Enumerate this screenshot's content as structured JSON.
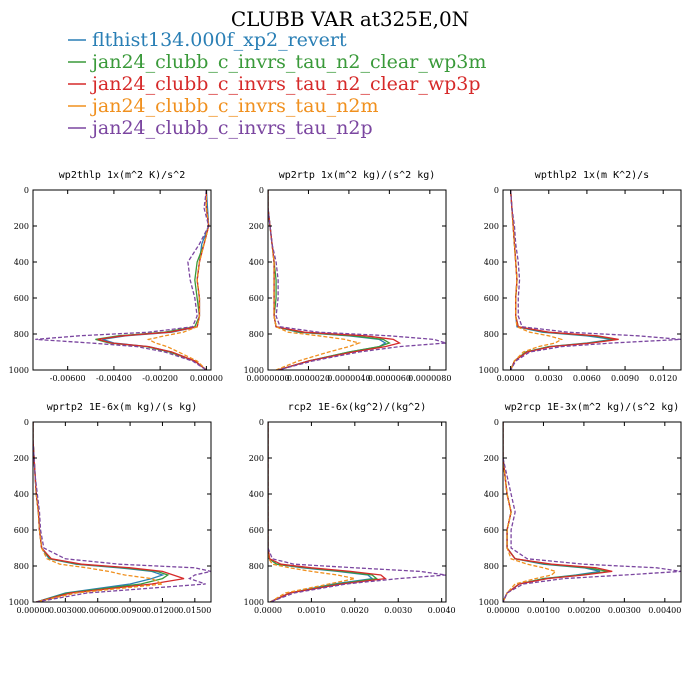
{
  "figure": {
    "title": "CLUBB VAR at325E,0N"
  },
  "legend": [
    {
      "label": "flthist134.000f_xp2_revert",
      "color": "#2a7fb5"
    },
    {
      "label": "jan24_clubb_c_invrs_tau_n2_clear_wp3m",
      "color": "#3a9a3a"
    },
    {
      "label": "jan24_clubb_c_invrs_tau_n2_clear_wp3p",
      "color": "#d62a2a"
    },
    {
      "label": "jan24_clubb_c_invrs_tau_n2m",
      "color": "#f0901e"
    },
    {
      "label": "jan24_clubb_c_invrs_tau_n2p",
      "color": "#7b46a0"
    }
  ],
  "chart_data": [
    {
      "type": "line",
      "title": "wp2thlp  1x(m^2 K)/s^2",
      "xlim": [
        -0.0075,
        0.0002
      ],
      "ylim": [
        1000,
        0
      ],
      "yticks": [
        0,
        200,
        400,
        600,
        800,
        1000
      ],
      "xticks": [
        {
          "v": -0.006,
          "label": "-0.00600"
        },
        {
          "v": -0.004,
          "label": "-0.00400"
        },
        {
          "v": -0.002,
          "label": "-0.00200"
        },
        {
          "v": 0.0,
          "label": "0.00000"
        }
      ],
      "y": [
        0,
        100,
        200,
        300,
        400,
        500,
        600,
        700,
        760,
        790,
        810,
        830,
        850,
        870,
        900,
        950,
        1000
      ],
      "series": [
        {
          "values": [
            0,
            5e-05,
            0.0001,
            -0.0002,
            -0.0003,
            -0.0004,
            -0.0003,
            -0.0003,
            -0.0004,
            -0.0015,
            -0.0035,
            -0.0045,
            -0.004,
            -0.0025,
            -0.0015,
            -0.0005,
            0
          ],
          "color": "#2a7fb5"
        },
        {
          "values": [
            0,
            0.0,
            0.0001,
            -0.0001,
            -0.0004,
            -0.0005,
            -0.0004,
            -0.0003,
            -0.0005,
            -0.0018,
            -0.0038,
            -0.0048,
            -0.0042,
            -0.0026,
            -0.0016,
            -0.0005,
            0
          ],
          "color": "#3a9a3a"
        },
        {
          "values": [
            0,
            0.0,
            0.0001,
            -0.0001,
            -0.0003,
            -0.0004,
            -0.0003,
            -0.0003,
            -0.0004,
            -0.0016,
            -0.0036,
            -0.0047,
            -0.0041,
            -0.0025,
            -0.0015,
            -0.0005,
            0
          ],
          "color": "#d62a2a"
        },
        {
          "values": [
            0,
            0.0,
            0.0001,
            -0.0001,
            -0.0003,
            -0.0004,
            -0.0003,
            -0.0003,
            -0.0004,
            -0.001,
            -0.0018,
            -0.0025,
            -0.0022,
            -0.0017,
            -0.0012,
            -0.0004,
            0
          ],
          "color": "#f0901e",
          "dashed": true
        },
        {
          "values": [
            0,
            -0.0001,
            0.0001,
            -0.0003,
            -0.0008,
            -0.0007,
            -0.0005,
            -0.0004,
            -0.0006,
            -0.0025,
            -0.0055,
            -0.0074,
            -0.005,
            -0.003,
            -0.0018,
            -0.0006,
            0
          ],
          "color": "#7b46a0",
          "dashed": true
        }
      ]
    },
    {
      "type": "line",
      "title": "wp2rtp  1x(m^2 kg)/(s^2 kg)",
      "xlim": [
        0,
        8.8e-06
      ],
      "ylim": [
        1000,
        0
      ],
      "yticks": [
        0,
        200,
        400,
        600,
        800,
        1000
      ],
      "xticks": [
        {
          "v": 0,
          "label": "0.0000000"
        },
        {
          "v": 2e-06,
          "label": "0.0000020"
        },
        {
          "v": 4e-06,
          "label": "0.0000040"
        },
        {
          "v": 6e-06,
          "label": "0.0000060"
        },
        {
          "v": 8e-06,
          "label": "0.0000080"
        }
      ],
      "y": [
        0,
        100,
        200,
        300,
        400,
        500,
        600,
        700,
        760,
        790,
        810,
        830,
        850,
        870,
        900,
        950,
        1000
      ],
      "series": [
        {
          "values": [
            0,
            0,
            1e-07,
            2e-07,
            3e-07,
            3e-07,
            3e-07,
            3e-07,
            4e-07,
            1.5e-06,
            4e-06,
            5.5e-06,
            5.8e-06,
            5.5e-06,
            4e-06,
            2e-06,
            5e-07
          ],
          "color": "#2a7fb5"
        },
        {
          "values": [
            0,
            0,
            1e-07,
            2e-07,
            3e-07,
            4e-07,
            4e-07,
            3e-07,
            4e-07,
            1.6e-06,
            4.2e-06,
            5.7e-06,
            6e-06,
            5.5e-06,
            4e-06,
            2e-06,
            5e-07
          ],
          "color": "#3a9a3a"
        },
        {
          "values": [
            0,
            0,
            1e-07,
            2e-07,
            3e-07,
            3e-07,
            3e-07,
            3e-07,
            4e-07,
            1.8e-06,
            4.8e-06,
            6.2e-06,
            6.5e-06,
            5.8e-06,
            4.2e-06,
            2e-06,
            5e-07
          ],
          "color": "#d62a2a"
        },
        {
          "values": [
            0,
            0,
            1e-07,
            2e-07,
            3e-07,
            3e-07,
            3e-07,
            3e-07,
            4e-07,
            1e-06,
            2.5e-06,
            3.8e-06,
            4.5e-06,
            4e-06,
            3e-06,
            1.5e-06,
            4e-07
          ],
          "color": "#f0901e",
          "dashed": true
        },
        {
          "values": [
            0,
            0,
            1e-07,
            2e-07,
            4e-07,
            5e-07,
            5e-07,
            4e-07,
            6e-07,
            2.5e-06,
            6e-06,
            8.2e-06,
            8.8e-06,
            6.5e-06,
            4.5e-06,
            2.2e-06,
            5e-07
          ],
          "color": "#7b46a0",
          "dashed": true
        }
      ]
    },
    {
      "type": "line",
      "title": "wpthlp2  1x(m K^2)/s",
      "xlim": [
        -0.0006,
        0.0134
      ],
      "ylim": [
        1000,
        0
      ],
      "yticks": [
        0,
        200,
        400,
        600,
        800,
        1000
      ],
      "xticks": [
        {
          "v": 0,
          "label": "0.0000"
        },
        {
          "v": 0.003,
          "label": "0.0030"
        },
        {
          "v": 0.006,
          "label": "0.0060"
        },
        {
          "v": 0.009,
          "label": "0.0090"
        },
        {
          "v": 0.012,
          "label": "0.0120"
        }
      ],
      "y": [
        0,
        100,
        200,
        300,
        400,
        500,
        600,
        700,
        760,
        790,
        810,
        830,
        850,
        870,
        900,
        950,
        1000
      ],
      "series": [
        {
          "values": [
            0,
            0.0001,
            0.0002,
            0.0003,
            0.0004,
            0.0005,
            0.0004,
            0.0004,
            0.0005,
            0.0025,
            0.006,
            0.008,
            0.006,
            0.003,
            0.0012,
            0.0003,
            0
          ],
          "color": "#2a7fb5"
        },
        {
          "values": [
            0,
            0.0001,
            0.0002,
            0.0003,
            0.0004,
            0.0005,
            0.0004,
            0.0004,
            0.0006,
            0.0028,
            0.0065,
            0.0083,
            0.0062,
            0.003,
            0.0012,
            0.0003,
            0
          ],
          "color": "#3a9a3a"
        },
        {
          "values": [
            0,
            0.0001,
            0.0002,
            0.0003,
            0.0004,
            0.0005,
            0.0004,
            0.0004,
            0.0006,
            0.003,
            0.0068,
            0.0085,
            0.0064,
            0.0032,
            0.0013,
            0.0003,
            0
          ],
          "color": "#d62a2a"
        },
        {
          "values": [
            0,
            0.0001,
            0.0002,
            0.0003,
            0.0004,
            0.0005,
            0.0004,
            0.0004,
            0.0005,
            0.0015,
            0.003,
            0.004,
            0.0035,
            0.0022,
            0.001,
            0.0003,
            0
          ],
          "color": "#f0901e",
          "dashed": true
        },
        {
          "values": [
            0,
            0.0001,
            0.0003,
            0.0004,
            0.0006,
            0.0007,
            0.0006,
            0.0006,
            0.0009,
            0.0045,
            0.01,
            0.0134,
            0.008,
            0.004,
            0.0015,
            0.0004,
            0
          ],
          "color": "#7b46a0",
          "dashed": true
        }
      ]
    },
    {
      "type": "line",
      "title": "wprtp2  1E-6x(m kg)/(s kg)",
      "xlim": [
        0,
        0.0165
      ],
      "ylim": [
        1000,
        0
      ],
      "yticks": [
        0,
        200,
        400,
        600,
        800,
        1000
      ],
      "xticks": [
        {
          "v": 0,
          "label": "0.00000"
        },
        {
          "v": 0.003,
          "label": "0.00300"
        },
        {
          "v": 0.006,
          "label": "0.00600"
        },
        {
          "v": 0.009,
          "label": "0.00900"
        },
        {
          "v": 0.012,
          "label": "0.01200"
        },
        {
          "v": 0.015,
          "label": "0.01500"
        }
      ],
      "y": [
        0,
        100,
        200,
        300,
        400,
        500,
        600,
        700,
        760,
        790,
        810,
        830,
        850,
        870,
        900,
        950,
        1000
      ],
      "series": [
        {
          "values": [
            0,
            0,
            0.0001,
            0.0002,
            0.0003,
            0.0005,
            0.0006,
            0.0008,
            0.0015,
            0.004,
            0.008,
            0.011,
            0.012,
            0.011,
            0.009,
            0.003,
            0.0003
          ],
          "color": "#2a7fb5"
        },
        {
          "values": [
            0,
            0,
            0.0001,
            0.0002,
            0.0003,
            0.0005,
            0.0006,
            0.0008,
            0.0016,
            0.0042,
            0.0085,
            0.0115,
            0.0125,
            0.012,
            0.01,
            0.0032,
            0.0003
          ],
          "color": "#3a9a3a"
        },
        {
          "values": [
            0,
            0,
            0.0001,
            0.0002,
            0.0003,
            0.0005,
            0.0006,
            0.0008,
            0.0017,
            0.0045,
            0.009,
            0.012,
            0.013,
            0.014,
            0.011,
            0.0035,
            0.0003
          ],
          "color": "#d62a2a"
        },
        {
          "values": [
            0,
            0,
            0.0001,
            0.0002,
            0.0003,
            0.0005,
            0.0006,
            0.0008,
            0.0013,
            0.0025,
            0.005,
            0.007,
            0.0085,
            0.011,
            0.012,
            0.004,
            0.0003
          ],
          "color": "#f0901e",
          "dashed": true
        },
        {
          "values": [
            0,
            0,
            0.0001,
            0.0002,
            0.0004,
            0.0006,
            0.0007,
            0.001,
            0.003,
            0.008,
            0.015,
            0.0165,
            0.015,
            0.0145,
            0.016,
            0.005,
            0.0003
          ],
          "color": "#7b46a0",
          "dashed": true
        }
      ]
    },
    {
      "type": "line",
      "title": "rcp2  1E-6x(kg^2)/(kg^2)",
      "xlim": [
        0,
        0.0041
      ],
      "ylim": [
        1000,
        0
      ],
      "yticks": [
        0,
        200,
        400,
        600,
        800,
        1000
      ],
      "xticks": [
        {
          "v": 0,
          "label": "0.0000"
        },
        {
          "v": 0.001,
          "label": "0.0010"
        },
        {
          "v": 0.002,
          "label": "0.0020"
        },
        {
          "v": 0.003,
          "label": "0.0030"
        },
        {
          "v": 0.004,
          "label": "0.0040"
        }
      ],
      "y": [
        0,
        100,
        200,
        300,
        400,
        500,
        600,
        700,
        760,
        790,
        810,
        830,
        850,
        870,
        900,
        950,
        1000
      ],
      "series": [
        {
          "values": [
            0,
            0,
            0,
            0,
            0,
            0,
            0,
            0,
            3e-05,
            0.0002,
            0.0008,
            0.0016,
            0.0023,
            0.0024,
            0.0015,
            0.0005,
            5e-05
          ],
          "color": "#2a7fb5"
        },
        {
          "values": [
            0,
            0,
            0,
            0,
            0,
            0,
            0,
            0,
            3e-05,
            0.0002,
            0.0009,
            0.0017,
            0.0024,
            0.0025,
            0.0016,
            0.0005,
            5e-05
          ],
          "color": "#3a9a3a"
        },
        {
          "values": [
            0,
            0,
            0,
            0,
            0,
            0,
            0,
            0,
            4e-05,
            0.0003,
            0.001,
            0.0019,
            0.0026,
            0.0027,
            0.0017,
            0.0005,
            5e-05
          ],
          "color": "#d62a2a"
        },
        {
          "values": [
            0,
            0,
            0,
            0,
            0,
            0,
            0,
            0,
            2e-05,
            0.0001,
            0.0005,
            0.001,
            0.0016,
            0.002,
            0.0014,
            0.0004,
            5e-05
          ],
          "color": "#f0901e",
          "dashed": true
        },
        {
          "values": [
            0,
            0,
            0,
            0,
            0,
            0,
            0,
            0,
            0.0001,
            0.0006,
            0.002,
            0.0035,
            0.0041,
            0.003,
            0.0018,
            0.0006,
            5e-05
          ],
          "color": "#7b46a0",
          "dashed": true
        }
      ]
    },
    {
      "type": "line",
      "title": "wp2rcp  1E-3x(m^2 kg)/(s^2 kg)",
      "xlim": [
        0,
        0.0044
      ],
      "ylim": [
        1000,
        0
      ],
      "yticks": [
        0,
        200,
        400,
        600,
        800,
        1000
      ],
      "xticks": [
        {
          "v": 0,
          "label": "0.00000"
        },
        {
          "v": 0.001,
          "label": "0.00100"
        },
        {
          "v": 0.002,
          "label": "0.00200"
        },
        {
          "v": 0.003,
          "label": "0.00300"
        },
        {
          "v": 0.004,
          "label": "0.00400"
        }
      ],
      "y": [
        0,
        100,
        200,
        300,
        400,
        500,
        600,
        700,
        760,
        790,
        810,
        830,
        850,
        870,
        900,
        950,
        1000
      ],
      "series": [
        {
          "values": [
            0,
            0,
            0,
            5e-05,
            0.0001,
            0.0002,
            0.0001,
            0.0001,
            0.0003,
            0.001,
            0.002,
            0.0024,
            0.0018,
            0.001,
            0.0004,
            0.0001,
            0
          ],
          "color": "#2a7fb5"
        },
        {
          "values": [
            0,
            0,
            0,
            5e-05,
            0.0001,
            0.0002,
            0.0001,
            0.0001,
            0.0003,
            0.0011,
            0.0021,
            0.0026,
            0.0019,
            0.001,
            0.0004,
            0.0001,
            0
          ],
          "color": "#3a9a3a"
        },
        {
          "values": [
            0,
            0,
            0,
            5e-05,
            0.0001,
            0.0002,
            0.0001,
            0.0001,
            0.0003,
            0.0012,
            0.0023,
            0.0027,
            0.002,
            0.0011,
            0.0004,
            0.0001,
            0
          ],
          "color": "#d62a2a"
        },
        {
          "values": [
            0,
            0,
            0,
            5e-05,
            0.0001,
            0.0002,
            0.0001,
            0.0001,
            0.0002,
            0.0006,
            0.001,
            0.0013,
            0.0012,
            0.0008,
            0.0003,
            0.0001,
            0
          ],
          "color": "#f0901e",
          "dashed": true
        },
        {
          "values": [
            0,
            0,
            0,
            0.0001,
            0.0002,
            0.0003,
            0.0002,
            0.0002,
            0.0006,
            0.002,
            0.0038,
            0.0044,
            0.003,
            0.0015,
            0.0005,
            0.0001,
            0
          ],
          "color": "#7b46a0",
          "dashed": true
        }
      ]
    }
  ]
}
